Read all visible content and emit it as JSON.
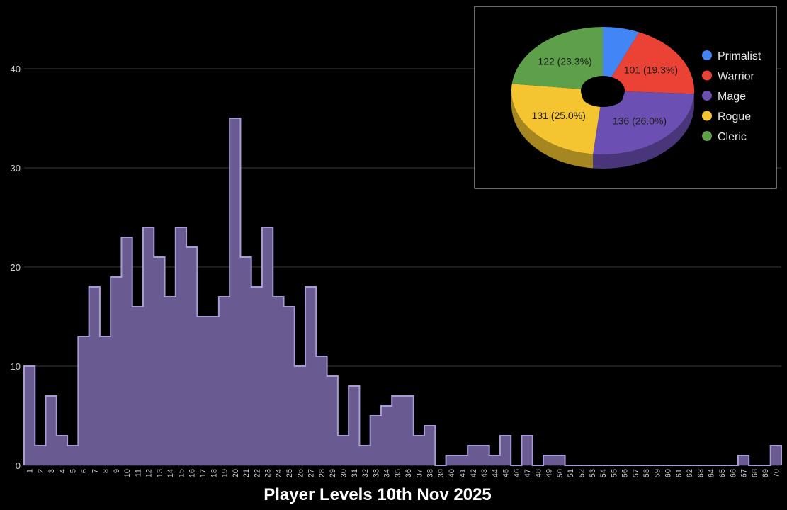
{
  "title": "Player Levels 10th Nov 2025",
  "chart_data": [
    {
      "type": "area",
      "title": "Player Levels 10th Nov 2025",
      "xlabel": "",
      "ylabel": "",
      "x": [
        1,
        2,
        3,
        4,
        5,
        6,
        7,
        8,
        9,
        10,
        11,
        12,
        13,
        14,
        15,
        16,
        17,
        18,
        19,
        20,
        21,
        22,
        23,
        24,
        25,
        26,
        27,
        28,
        29,
        30,
        31,
        32,
        33,
        34,
        35,
        36,
        37,
        38,
        39,
        40,
        41,
        42,
        43,
        44,
        45,
        46,
        47,
        48,
        49,
        50,
        51,
        52,
        53,
        54,
        55,
        56,
        57,
        58,
        59,
        60,
        61,
        62,
        63,
        64,
        65,
        66,
        67,
        68,
        69,
        70
      ],
      "values": [
        10,
        2,
        7,
        3,
        2,
        13,
        18,
        13,
        19,
        23,
        16,
        24,
        21,
        17,
        24,
        22,
        15,
        15,
        17,
        35,
        21,
        18,
        24,
        17,
        16,
        10,
        18,
        11,
        9,
        3,
        8,
        2,
        5,
        6,
        7,
        7,
        3,
        4,
        0,
        1,
        1,
        2,
        2,
        1,
        3,
        0,
        3,
        0,
        1,
        1,
        0,
        0,
        0,
        0,
        0,
        0,
        0,
        0,
        0,
        0,
        0,
        0,
        0,
        0,
        0,
        0,
        1,
        0,
        0,
        2
      ],
      "ylim": [
        0,
        40
      ],
      "yticks": [
        0,
        10,
        20,
        30,
        40
      ],
      "grid": true,
      "color": "#6a5a92"
    },
    {
      "type": "pie",
      "variant": "3d-donut",
      "legend_position": "right",
      "slices": [
        {
          "name": "Primalist",
          "value": 34,
          "label": "",
          "color": "#4285f4"
        },
        {
          "name": "Warrior",
          "value": 101,
          "label": "101 (19.3%)",
          "color": "#ea4335"
        },
        {
          "name": "Mage",
          "value": 136,
          "label": "136 (26.0%)",
          "color": "#6b4fb3"
        },
        {
          "name": "Rogue",
          "value": 131,
          "label": "131 (25.0%)",
          "color": "#f4c531"
        },
        {
          "name": "Cleric",
          "value": 122,
          "label": "122 (23.3%)",
          "color": "#5ea04a"
        }
      ]
    }
  ]
}
